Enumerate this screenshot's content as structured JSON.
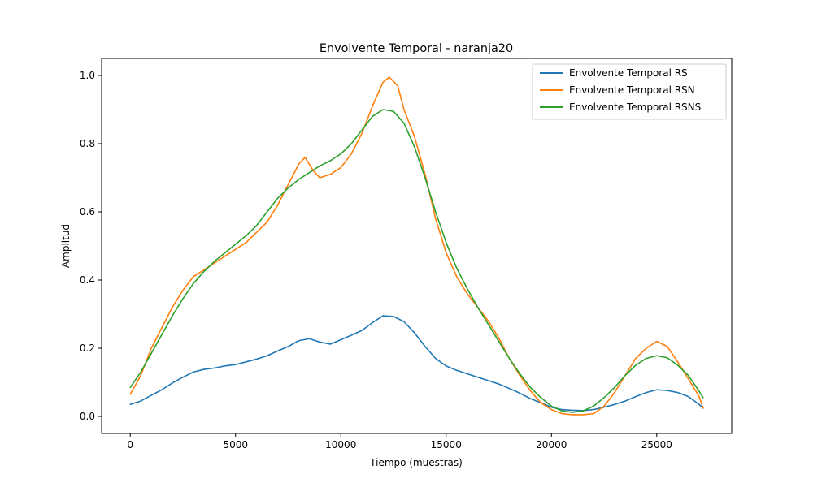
{
  "chart_data": {
    "type": "line",
    "title": "Envolvente Temporal - naranja20",
    "xlabel": "Tiempo (muestras)",
    "ylabel": "Amplitud",
    "xlim": [
      -1360,
      28560
    ],
    "ylim": [
      -0.05,
      1.05
    ],
    "xticks": [
      0,
      5000,
      10000,
      15000,
      20000,
      25000
    ],
    "yticks": [
      0.0,
      0.2,
      0.4,
      0.6,
      0.8,
      1.0
    ],
    "xtick_labels": [
      "0",
      "5000",
      "10000",
      "15000",
      "20000",
      "25000"
    ],
    "ytick_labels": [
      "0.0",
      "0.2",
      "0.4",
      "0.6",
      "0.8",
      "1.0"
    ],
    "grid": false,
    "legend_position": "top-right",
    "series": [
      {
        "name": "Envolvente Temporal RS",
        "color": "#1f77b4",
        "x": [
          0,
          500,
          1000,
          1500,
          2000,
          2500,
          3000,
          3500,
          4000,
          4500,
          5000,
          5500,
          6000,
          6500,
          7000,
          7500,
          8000,
          8500,
          9000,
          9500,
          10000,
          10500,
          11000,
          11500,
          12000,
          12500,
          13000,
          13500,
          14000,
          14500,
          15000,
          15500,
          16000,
          16500,
          17000,
          17500,
          18000,
          18500,
          19000,
          19500,
          20000,
          20500,
          21000,
          21500,
          22000,
          22500,
          23000,
          23500,
          24000,
          24500,
          25000,
          25500,
          26000,
          26500,
          27000,
          27200
        ],
        "y": [
          0.035,
          0.045,
          0.062,
          0.078,
          0.098,
          0.115,
          0.13,
          0.138,
          0.142,
          0.148,
          0.152,
          0.16,
          0.168,
          0.178,
          0.192,
          0.205,
          0.222,
          0.228,
          0.218,
          0.212,
          0.225,
          0.238,
          0.252,
          0.275,
          0.295,
          0.293,
          0.278,
          0.245,
          0.205,
          0.17,
          0.148,
          0.135,
          0.125,
          0.115,
          0.105,
          0.095,
          0.082,
          0.068,
          0.052,
          0.04,
          0.027,
          0.02,
          0.018,
          0.017,
          0.02,
          0.027,
          0.035,
          0.045,
          0.058,
          0.07,
          0.078,
          0.076,
          0.07,
          0.058,
          0.036,
          0.024
        ]
      },
      {
        "name": "Envolvente Temporal RSN",
        "color": "#ff7f0e",
        "x": [
          0,
          500,
          1000,
          1500,
          2000,
          2500,
          3000,
          3500,
          4000,
          4500,
          5000,
          5500,
          6000,
          6500,
          7000,
          7500,
          8000,
          8300,
          8700,
          9000,
          9500,
          10000,
          10500,
          11000,
          11500,
          12000,
          12300,
          12700,
          13000,
          13500,
          14000,
          14500,
          15000,
          15500,
          16000,
          16500,
          17000,
          17500,
          18000,
          18500,
          19000,
          19500,
          20000,
          20500,
          21000,
          21500,
          22000,
          22500,
          23000,
          23500,
          24000,
          24500,
          25000,
          25500,
          26000,
          26500,
          27000,
          27200
        ],
        "y": [
          0.065,
          0.12,
          0.2,
          0.26,
          0.32,
          0.37,
          0.41,
          0.43,
          0.45,
          0.47,
          0.49,
          0.51,
          0.54,
          0.57,
          0.62,
          0.68,
          0.74,
          0.76,
          0.72,
          0.7,
          0.71,
          0.73,
          0.77,
          0.83,
          0.91,
          0.98,
          0.995,
          0.97,
          0.9,
          0.82,
          0.71,
          0.58,
          0.48,
          0.41,
          0.36,
          0.32,
          0.28,
          0.23,
          0.17,
          0.12,
          0.075,
          0.04,
          0.02,
          0.008,
          0.005,
          0.005,
          0.008,
          0.03,
          0.07,
          0.12,
          0.17,
          0.2,
          0.22,
          0.205,
          0.16,
          0.11,
          0.06,
          0.025
        ]
      },
      {
        "name": "Envolvente Temporal RSNS",
        "color": "#2ca02c",
        "x": [
          0,
          500,
          1000,
          1500,
          2000,
          2500,
          3000,
          3500,
          4000,
          4500,
          5000,
          5500,
          6000,
          6500,
          7000,
          7500,
          8000,
          8500,
          9000,
          9500,
          10000,
          10500,
          11000,
          11500,
          12000,
          12500,
          13000,
          13500,
          14000,
          14500,
          15000,
          15500,
          16000,
          16500,
          17000,
          17500,
          18000,
          18500,
          19000,
          19500,
          20000,
          20500,
          21000,
          21500,
          22000,
          22500,
          23000,
          23500,
          24000,
          24500,
          25000,
          25500,
          26000,
          26500,
          27000,
          27200
        ],
        "y": [
          0.085,
          0.13,
          0.185,
          0.24,
          0.295,
          0.345,
          0.39,
          0.425,
          0.455,
          0.48,
          0.505,
          0.53,
          0.56,
          0.6,
          0.64,
          0.67,
          0.695,
          0.715,
          0.735,
          0.75,
          0.77,
          0.8,
          0.84,
          0.88,
          0.9,
          0.895,
          0.86,
          0.79,
          0.7,
          0.6,
          0.51,
          0.435,
          0.375,
          0.32,
          0.27,
          0.22,
          0.17,
          0.125,
          0.085,
          0.055,
          0.03,
          0.016,
          0.012,
          0.016,
          0.03,
          0.055,
          0.085,
          0.12,
          0.15,
          0.17,
          0.178,
          0.172,
          0.15,
          0.12,
          0.075,
          0.055
        ]
      }
    ]
  }
}
